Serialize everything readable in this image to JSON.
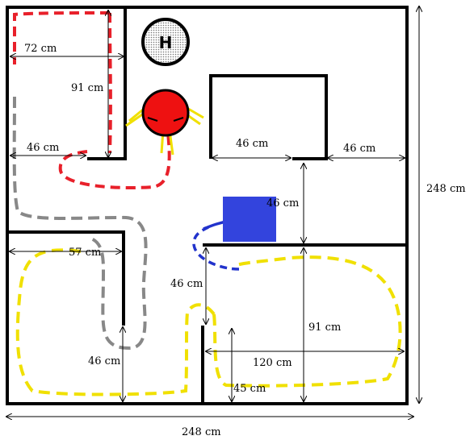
{
  "labels": {
    "helipad": "H",
    "dim_72": "72 cm",
    "dim_91_top": "91 cm",
    "dim_46_left": "46 cm",
    "dim_46_box": "46 cm",
    "dim_46_right": "46 cm",
    "dim_46_gap": "46 cm",
    "dim_248_right": "248 cm",
    "dim_57": "57 cm",
    "dim_46_mid": "46 cm",
    "dim_91_bottom": "91 cm",
    "dim_120": "120 cm",
    "dim_46_bottom": "46 cm",
    "dim_45": "45 cm",
    "dim_248_bottom": "248 cm"
  },
  "colors": {
    "wall": "#000000",
    "robot": "#ee1111",
    "target": "#3344dd",
    "path_red": "#e8202a",
    "path_gray": "#888888",
    "path_yellow": "#f0e000",
    "path_blue": "#2233cc",
    "helipad_fill": "#dddddd"
  }
}
